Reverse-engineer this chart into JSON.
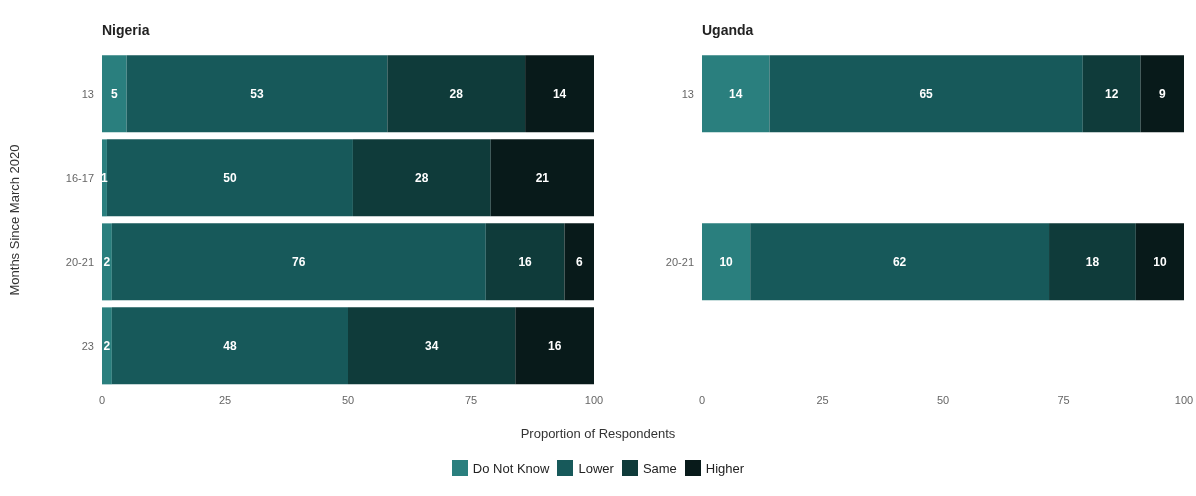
{
  "chart_data": [
    {
      "type": "bar",
      "title": "Nigeria",
      "xlabel": "Proportion of Respondents",
      "ylabel": "Months Since March 2020",
      "orientation": "horizontal",
      "stacked": true,
      "data_labels": true,
      "legend": "bottom",
      "categories": [
        "13",
        "16-17",
        "20-21",
        "23"
      ],
      "series": [
        {
          "name": "Do Not Know",
          "color": "#2a7f7e",
          "values": [
            5,
            1,
            2,
            2
          ]
        },
        {
          "name": "Lower",
          "color": "#17595a",
          "values": [
            53,
            50,
            76,
            48
          ]
        },
        {
          "name": "Same",
          "color": "#0f3b3a",
          "values": [
            28,
            28,
            16,
            34
          ]
        },
        {
          "name": "Higher",
          "color": "#081a1a",
          "values": [
            14,
            21,
            6,
            16
          ]
        }
      ],
      "xlim": [
        0,
        100
      ],
      "xticks": [
        0,
        25,
        50,
        75,
        100
      ]
    },
    {
      "type": "bar",
      "title": "Uganda",
      "orientation": "horizontal",
      "stacked": true,
      "data_labels": true,
      "categories": [
        "13",
        null,
        "20-21",
        null
      ],
      "series": [
        {
          "color": "#2a7f7e",
          "values": [
            14,
            null,
            10,
            null
          ]
        },
        {
          "color": "#17595a",
          "values": [
            65,
            null,
            62,
            null
          ]
        },
        {
          "color": "#0f3b3a",
          "values": [
            12,
            null,
            18,
            null
          ]
        },
        {
          "color": "#081a1a",
          "values": [
            9,
            null,
            10,
            null
          ]
        }
      ],
      "xlim": [
        0,
        100
      ],
      "xticks": [
        0,
        25,
        50,
        75,
        100
      ]
    }
  ]
}
